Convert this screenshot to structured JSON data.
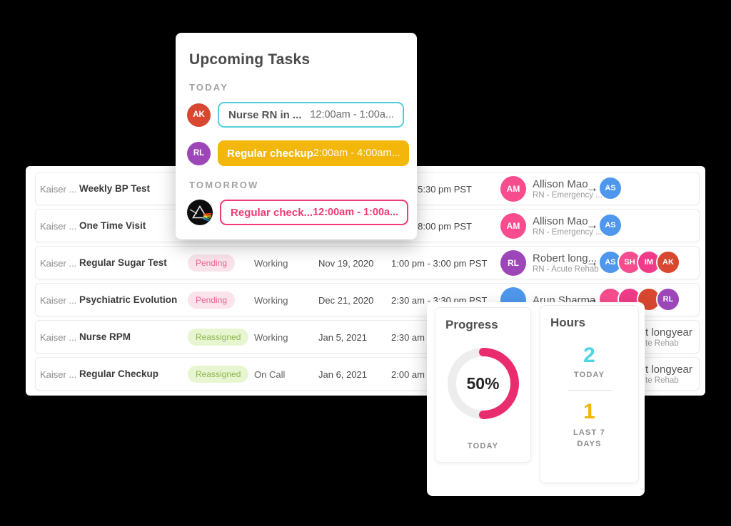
{
  "canvas": {
    "background": "#000000"
  },
  "upcoming_card": {
    "title": "Upcoming Tasks",
    "sections": [
      {
        "label": "TODAY",
        "tasks": [
          {
            "avatar": {
              "type": "initials",
              "initials": "AK",
              "color": "#d8472f"
            },
            "style": "outline-cyan",
            "name": "Nurse RN in ...",
            "time": "12:00am - 1:00a..."
          },
          {
            "avatar": {
              "type": "initials",
              "initials": "RL",
              "color": "#9c46b8"
            },
            "style": "solid-yellow",
            "name": "Regular checkup",
            "time": "2:00am - 4:00am..."
          }
        ]
      },
      {
        "label": "TOMORROW",
        "tasks": [
          {
            "avatar": {
              "type": "prism"
            },
            "style": "outline-pink",
            "name": "Regular check...",
            "time": "12:00am - 1:00a..."
          }
        ]
      }
    ]
  },
  "table": {
    "rows": [
      {
        "client": "Kaiser ...",
        "task": "Weekly BP Test",
        "status": null,
        "schedule": "",
        "date": "",
        "time": "- 5:30 pm PST",
        "time_align": "right",
        "person": {
          "initials": "AM",
          "color": "#f74d8e",
          "name": "Allison Mao",
          "subtitle": "RN - Emergency ..."
        },
        "assignees": [
          {
            "initials": "AS",
            "color": "#4e97ec"
          }
        ]
      },
      {
        "client": "Kaiser ...",
        "task": "One Time Visit",
        "status": null,
        "schedule": "",
        "date": "",
        "time": "- 8:00 pm PST",
        "time_align": "right",
        "person": {
          "initials": "AM",
          "color": "#f74d8e",
          "name": "Allison Mao",
          "subtitle": "RN - Emergency ..."
        },
        "assignees": [
          {
            "initials": "AS",
            "color": "#4e97ec"
          }
        ]
      },
      {
        "client": "Kaiser ...",
        "task": "Regular Sugar Test",
        "status": {
          "label": "Pending",
          "type": "pending"
        },
        "schedule": "Working",
        "date": "Nov 19, 2020",
        "time": "1:00 pm - 3:00 pm PST",
        "time_align": "left",
        "person": {
          "initials": "RL",
          "color": "#9c46b8",
          "name": "Robert long...",
          "subtitle": "RN - Acute Rehab"
        },
        "assignees": [
          {
            "initials": "AS",
            "color": "#4e97ec"
          },
          {
            "initials": "SH",
            "color": "#f74d8e"
          },
          {
            "initials": "IM",
            "color": "#f03c88"
          },
          {
            "initials": "AK",
            "color": "#d8472f"
          }
        ]
      },
      {
        "client": "Kaiser ...",
        "task": "Psychiatric Evolution",
        "status": {
          "label": "Pending",
          "type": "pending"
        },
        "schedule": "Working",
        "date": "Dec 21, 2020",
        "time": "2:30 am - 3:30 pm PST",
        "time_align": "left",
        "person": {
          "initials": "",
          "color": "#4e97ec",
          "name": "Arun Sharma",
          "subtitle": ""
        },
        "assignees": [
          {
            "initials": "",
            "color": "#f74d8e"
          },
          {
            "initials": "",
            "color": "#f03c88"
          },
          {
            "initials": "",
            "color": "#d8472f"
          },
          {
            "initials": "RL",
            "color": "#9c46b8"
          }
        ]
      },
      {
        "client": "Kaiser ...",
        "task": "Nurse RPM",
        "status": {
          "label": "Reassigned",
          "type": "reassigned"
        },
        "schedule": "Working",
        "date": "Jan 5, 2021",
        "time": "2:30 am - 3",
        "time_align": "left",
        "person_fragment": {
          "name": "t longyear",
          "subtitle": "te Rehab"
        }
      },
      {
        "client": "Kaiser ...",
        "task": "Regular Checkup",
        "status": {
          "label": "Reassigned",
          "type": "reassigned"
        },
        "schedule": "On Call",
        "date": "Jan 6, 2021",
        "time": "2:00 am - 4",
        "time_align": "left",
        "person_fragment": {
          "name": "t longyear",
          "subtitle": "te Rehab"
        }
      }
    ]
  },
  "progress_card": {
    "title": "Progress",
    "percent": 50,
    "percent_label": "50%",
    "caption": "TODAY",
    "ring_color": "#e92c6d",
    "track_color": "#ededed"
  },
  "hours_card": {
    "title": "Hours",
    "today_value": "2",
    "today_color": "#4ed4e4",
    "today_label": "TODAY",
    "week_value": "1",
    "week_color": "#f2b705",
    "week_label_line1": "LAST 7",
    "week_label_line2": "DAYS"
  }
}
